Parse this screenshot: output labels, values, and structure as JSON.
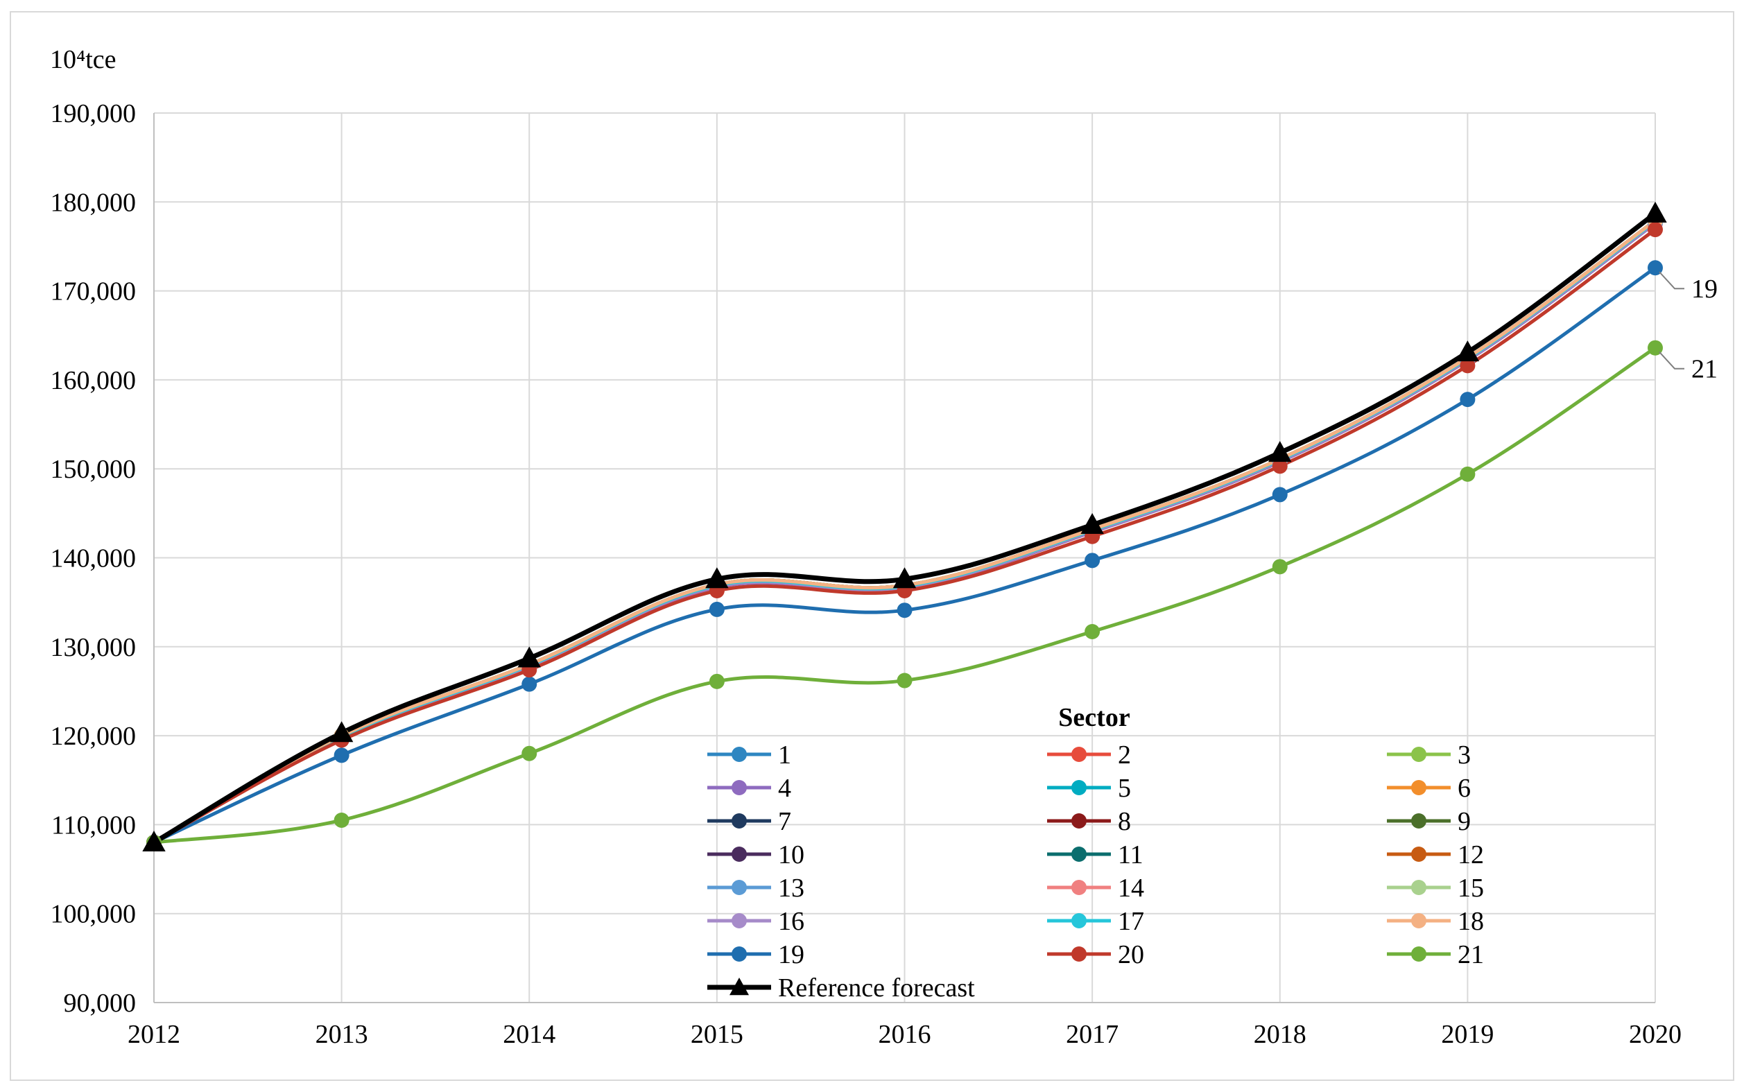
{
  "chart_data": {
    "type": "line",
    "ylabel": "10⁴tce",
    "xlabel": "",
    "title": "",
    "x": [
      "2012",
      "2013",
      "2014",
      "2015",
      "2016",
      "2017",
      "2018",
      "2019",
      "2020"
    ],
    "ylim": [
      90000,
      190000
    ],
    "yticks": [
      "90,000",
      "100,000",
      "110,000",
      "120,000",
      "130,000",
      "140,000",
      "150,000",
      "160,000",
      "170,000",
      "180,000",
      "190,000"
    ],
    "grid": true,
    "smooth": true,
    "legend_title": "Sector",
    "legend_position": "bottom-center, inside plot",
    "series": [
      {
        "name": "1",
        "color": "#2E86C1",
        "values": [
          108000,
          119800,
          127800,
          136800,
          136700,
          143000,
          150900,
          162300,
          177700
        ]
      },
      {
        "name": "2",
        "color": "#E74C3C",
        "values": [
          108000,
          119900,
          127900,
          136900,
          136800,
          143100,
          151000,
          162400,
          177800
        ]
      },
      {
        "name": "3",
        "color": "#8BC34A",
        "values": [
          108000,
          120000,
          128000,
          137000,
          136900,
          143200,
          151100,
          162500,
          177900
        ]
      },
      {
        "name": "4",
        "color": "#8E6BBF",
        "values": [
          108000,
          119700,
          127700,
          136700,
          136600,
          142900,
          150800,
          162200,
          177600
        ]
      },
      {
        "name": "5",
        "color": "#00ACC1",
        "values": [
          108000,
          119900,
          127900,
          136900,
          136800,
          143100,
          151000,
          162400,
          177800
        ]
      },
      {
        "name": "6",
        "color": "#F28E2B",
        "values": [
          108000,
          120000,
          128000,
          137000,
          136900,
          143200,
          151100,
          162500,
          177900
        ]
      },
      {
        "name": "7",
        "color": "#1F3A5F",
        "values": [
          108000,
          119900,
          127900,
          136900,
          136800,
          143100,
          151000,
          162400,
          177800
        ]
      },
      {
        "name": "8",
        "color": "#8B1A1A",
        "values": [
          108000,
          119800,
          127800,
          136800,
          136700,
          143000,
          150900,
          162300,
          177700
        ]
      },
      {
        "name": "9",
        "color": "#4B6F2A",
        "values": [
          108000,
          120000,
          128000,
          137000,
          136900,
          143200,
          151100,
          162500,
          177900
        ]
      },
      {
        "name": "10",
        "color": "#4A2C5E",
        "values": [
          108000,
          119900,
          127900,
          136900,
          136800,
          143100,
          151000,
          162400,
          177800
        ]
      },
      {
        "name": "11",
        "color": "#0B6E6E",
        "values": [
          108000,
          120000,
          128000,
          137000,
          136900,
          143200,
          151100,
          162500,
          177900
        ]
      },
      {
        "name": "12",
        "color": "#C75B12",
        "values": [
          108000,
          120000,
          128000,
          137000,
          136900,
          143200,
          151100,
          162500,
          177900
        ]
      },
      {
        "name": "13",
        "color": "#5B9BD5",
        "values": [
          108000,
          119900,
          127900,
          136900,
          136800,
          143100,
          151000,
          162400,
          177800
        ]
      },
      {
        "name": "14",
        "color": "#F08080",
        "values": [
          108000,
          119800,
          127800,
          136800,
          136700,
          143000,
          150900,
          162300,
          177700
        ]
      },
      {
        "name": "15",
        "color": "#A9D18E",
        "values": [
          108000,
          120000,
          128000,
          137000,
          136900,
          143200,
          151100,
          162500,
          177900
        ]
      },
      {
        "name": "16",
        "color": "#A68BC9",
        "values": [
          108000,
          119800,
          127800,
          136800,
          136700,
          143000,
          150900,
          162300,
          177700
        ]
      },
      {
        "name": "17",
        "color": "#26C6DA",
        "values": [
          108000,
          119900,
          127900,
          136900,
          136800,
          143100,
          151000,
          162400,
          177800
        ]
      },
      {
        "name": "18",
        "color": "#F4B183",
        "values": [
          108000,
          120000,
          128000,
          137000,
          136900,
          143200,
          151100,
          162500,
          177900
        ]
      },
      {
        "name": "19",
        "color": "#1F6EAF",
        "values": [
          108000,
          117800,
          125800,
          134200,
          134100,
          139700,
          147100,
          157800,
          172600
        ]
      },
      {
        "name": "20",
        "color": "#C0392B",
        "values": [
          108000,
          119500,
          127400,
          136300,
          136300,
          142400,
          150300,
          161600,
          176900
        ]
      },
      {
        "name": "21",
        "color": "#6FAF3A",
        "values": [
          108000,
          110500,
          118000,
          126100,
          126200,
          131700,
          139000,
          149400,
          163600
        ]
      },
      {
        "name": "Reference forecast",
        "color": "#000000",
        "marker": "triangle",
        "values": [
          108000,
          120300,
          128700,
          137600,
          137600,
          143700,
          151800,
          163100,
          178700
        ]
      }
    ],
    "annotations": [
      {
        "text": "19",
        "series": "19",
        "x": "2020"
      },
      {
        "text": "21",
        "series": "21",
        "x": "2020"
      }
    ]
  }
}
